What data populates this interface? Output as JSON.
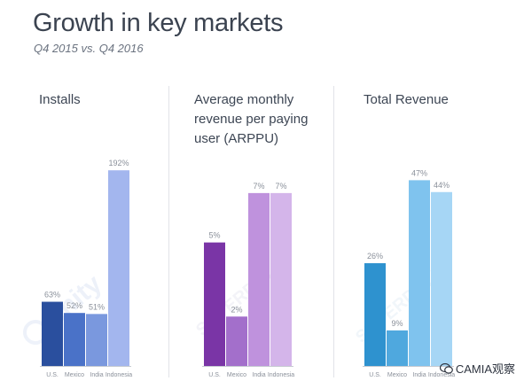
{
  "header": {
    "title": "Growth in key markets",
    "subtitle": "Q4 2015 vs. Q4 2016"
  },
  "watermarks": {
    "unity": "unity",
    "superdata": "SUPERDATA",
    "wechat": "CAMIA观察"
  },
  "colors": {
    "axis": "#c6cad1",
    "divider": "#e1e3e8",
    "label": "#8a909a"
  },
  "chart_data": [
    {
      "type": "bar",
      "title": "Installs",
      "categories": [
        "U.S.",
        "Mexico",
        "India",
        "Indonesia"
      ],
      "values": [
        63,
        52,
        51,
        192
      ],
      "labels": [
        "63%",
        "52%",
        "51%",
        "192%"
      ],
      "colors": [
        "#2a4f9e",
        "#4a72c8",
        "#7a98de",
        "#a3b6ee"
      ],
      "ylim": [
        0,
        200
      ]
    },
    {
      "type": "bar",
      "title": "Average monthly revenue per paying user (ARPPU)",
      "categories": [
        "U.S.",
        "Mexico",
        "India",
        "Indonesia"
      ],
      "values": [
        5,
        2,
        7,
        7
      ],
      "labels": [
        "5%",
        "2%",
        "7%",
        "7%"
      ],
      "colors": [
        "#7a35a6",
        "#a36fcb",
        "#bf92dd",
        "#d4b5ea"
      ],
      "ylim": [
        0,
        8
      ]
    },
    {
      "type": "bar",
      "title": "Total Revenue",
      "categories": [
        "U.S.",
        "Mexico",
        "India",
        "Indonesia"
      ],
      "values": [
        26,
        9,
        47,
        44
      ],
      "labels": [
        "26%",
        "9%",
        "47%",
        "44%"
      ],
      "colors": [
        "#2e92cf",
        "#4fa8de",
        "#7fc3ee",
        "#a6d6f5"
      ],
      "ylim": [
        0,
        50
      ]
    }
  ]
}
